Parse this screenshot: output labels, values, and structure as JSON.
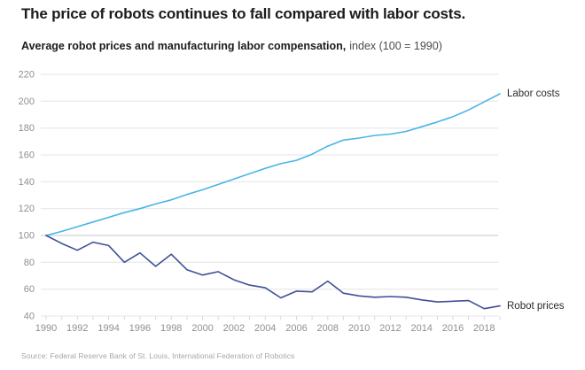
{
  "header": {
    "title": "The price of robots continues to fall compared with labor costs.",
    "subtitle_bold": "Average robot prices and manufacturing labor compensation,",
    "subtitle_light": "index (100 = 1990)"
  },
  "footer": {
    "source": "Source: Federal Reserve Bank of St. Louis, International Federation of Robotics"
  },
  "colors": {
    "labor_line": "#49b5e7",
    "robot_line": "#3e5095",
    "gridline": "#e4e4e4",
    "baseline_gridline": "#c7c7c7",
    "tick": "#d8d8d8",
    "axis_text": "#8f8f8f",
    "title_text": "#1b1b1b",
    "source_text": "#a6a6a6"
  },
  "chart_data": {
    "type": "line",
    "title": "The price of robots continues to fall compared with labor costs.",
    "subtitle": "Average robot prices and manufacturing labor compensation, index (100 = 1990)",
    "x": [
      1990,
      1991,
      1992,
      1993,
      1994,
      1995,
      1996,
      1997,
      1998,
      1999,
      2000,
      2001,
      2002,
      2003,
      2004,
      2005,
      2006,
      2007,
      2008,
      2009,
      2010,
      2011,
      2012,
      2013,
      2014,
      2015,
      2016,
      2017,
      2018,
      2019
    ],
    "series": [
      {
        "name": "Labor costs",
        "color": "#49b5e7",
        "values": [
          100,
          103,
          106.5,
          110,
          113.5,
          117,
          120,
          123.5,
          126.5,
          130.5,
          134,
          138,
          142,
          146,
          150,
          153.5,
          156,
          160.5,
          166.5,
          171,
          172.5,
          174.5,
          175.5,
          177.5,
          181,
          184.5,
          188.5,
          193.5,
          199.5,
          205.5
        ]
      },
      {
        "name": "Robot prices",
        "color": "#3e5095",
        "values": [
          100,
          94,
          89,
          95,
          92.5,
          80,
          87,
          77,
          86,
          74.5,
          70.5,
          73,
          67,
          63,
          61,
          53.5,
          58.5,
          58,
          66,
          57,
          55,
          54,
          54.5,
          54,
          52,
          50.5,
          51,
          51.5,
          45.5,
          47.5
        ]
      }
    ],
    "ylim": [
      40,
      220
    ],
    "ytick_step": 20,
    "yticks": [
      40,
      60,
      80,
      100,
      120,
      140,
      160,
      180,
      200,
      220
    ],
    "xtick_minor_step": 1,
    "xtick_label_step": 2,
    "xtick_labels": [
      "1990",
      "1992",
      "1994",
      "1996",
      "1998",
      "2000",
      "2002",
      "2004",
      "2006",
      "2008",
      "2010",
      "2012",
      "2014",
      "2016",
      "2018"
    ],
    "baseline_value": 100,
    "grid": "horizontal",
    "legend_position": "direct labels at line ends (right)"
  }
}
